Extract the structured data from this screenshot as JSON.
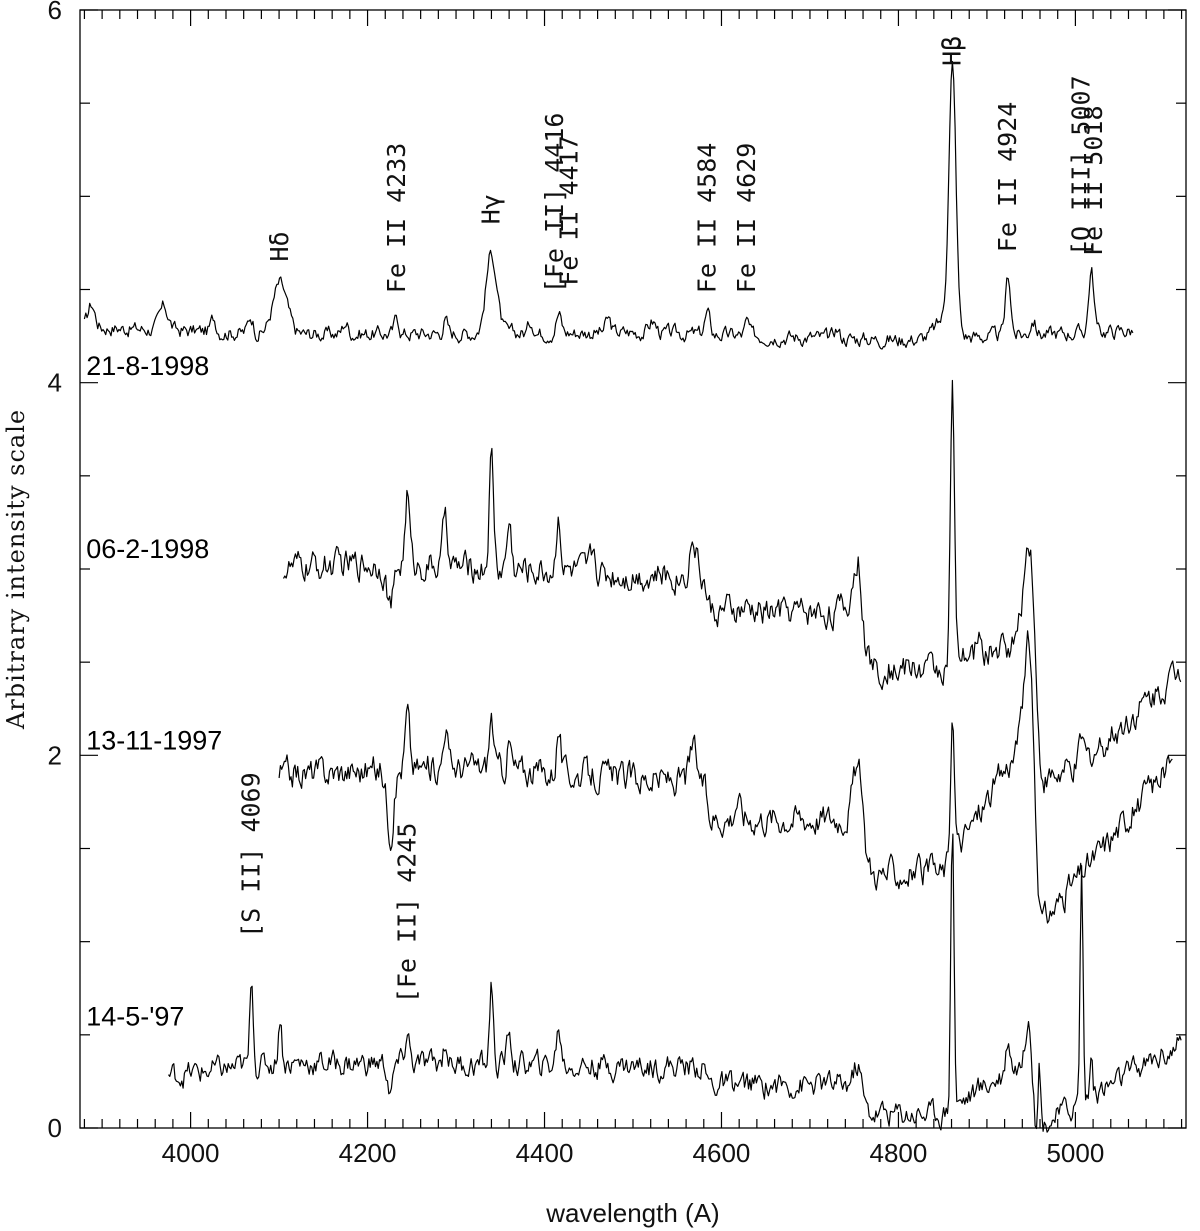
{
  "chart_data": {
    "type": "line",
    "xlabel": "wavelength (A)",
    "ylabel": "Arbitrary intensity scale",
    "xlim": [
      3875,
      5125
    ],
    "ylim": [
      0,
      6
    ],
    "x_major_ticks": [
      4000,
      4200,
      4400,
      4600,
      4800,
      5000
    ],
    "x_minor_step": 20,
    "y_major_ticks": [
      0,
      2,
      4,
      6
    ],
    "y_minor_step": 0.5,
    "grid": false,
    "series": [
      {
        "name": "21-8-1998",
        "x_range": [
          3880,
          5065
        ],
        "baseline": 4.25,
        "noise": 0.03,
        "trend": [
          [
            3880,
            4.3
          ],
          [
            4100,
            4.26
          ],
          [
            4500,
            4.27
          ],
          [
            4800,
            4.23
          ],
          [
            5065,
            4.28
          ]
        ],
        "features": [
          {
            "x": 3888,
            "h": 0.12,
            "w": 4
          },
          {
            "x": 3970,
            "h": 0.12,
            "w": 5
          },
          {
            "x": 4026,
            "h": 0.07,
            "w": 3
          },
          {
            "x": 4068,
            "h": 0.09,
            "w": 3
          },
          {
            "x": 4101,
            "h": 0.27,
            "w": 8
          },
          {
            "x": 4175,
            "h": 0.06,
            "w": 3
          },
          {
            "x": 4233,
            "h": 0.09,
            "w": 2.5
          },
          {
            "x": 4288,
            "h": 0.07,
            "w": 2.5
          },
          {
            "x": 4340,
            "h": 0.43,
            "w": 6
          },
          {
            "x": 4385,
            "h": 0.06,
            "w": 3
          },
          {
            "x": 4416,
            "h": 0.1,
            "w": 3
          },
          {
            "x": 4472,
            "h": 0.07,
            "w": 3
          },
          {
            "x": 4522,
            "h": 0.06,
            "w": 4
          },
          {
            "x": 4584,
            "h": 0.11,
            "w": 3
          },
          {
            "x": 4629,
            "h": 0.07,
            "w": 2.5
          },
          {
            "x": 4730,
            "h": 0.05,
            "w": 3
          },
          {
            "x": 4861,
            "h": 1.4,
            "w": 4
          },
          {
            "x": 4852,
            "h": 0.1,
            "w": 10
          },
          {
            "x": 4924,
            "h": 0.32,
            "w": 3
          },
          {
            "x": 4952,
            "h": 0.08,
            "w": 3
          },
          {
            "x": 5018,
            "h": 0.33,
            "w": 3
          }
        ],
        "edges": []
      },
      {
        "name": "06-2-1998",
        "x_range": [
          4105,
          5120
        ],
        "baseline": 3.05,
        "noise": 0.06,
        "trend": [
          [
            4105,
            3.0
          ],
          [
            4200,
            3.03
          ],
          [
            4600,
            2.95
          ],
          [
            4850,
            2.95
          ],
          [
            5000,
            3.2
          ],
          [
            5120,
            3.75
          ]
        ],
        "features": [
          {
            "x": 4226,
            "h": -0.22,
            "w": 4
          },
          {
            "x": 4245,
            "h": 0.38,
            "w": 2.5
          },
          {
            "x": 4288,
            "h": 0.3,
            "w": 2.5
          },
          {
            "x": 4340,
            "h": 0.6,
            "w": 2.5
          },
          {
            "x": 4360,
            "h": 0.25,
            "w": 2.5
          },
          {
            "x": 4416,
            "h": 0.32,
            "w": 2.5
          },
          {
            "x": 4455,
            "h": 0.12,
            "w": 3
          },
          {
            "x": 4568,
            "h": 0.2,
            "w": 4
          },
          {
            "x": 4755,
            "h": 0.3,
            "w": 6
          },
          {
            "x": 4861,
            "h": 1.5,
            "w": 2.2
          },
          {
            "x": 4890,
            "h": 0.1,
            "w": 2.5
          },
          {
            "x": 4948,
            "h": 0.55,
            "w": 6
          },
          {
            "x": 5007,
            "h": 0.12,
            "w": 2.5
          }
        ],
        "edges": [
          {
            "x": 4583,
            "d": -0.18,
            "w": 1.5
          },
          {
            "x": 4758,
            "d": -0.3,
            "w": 1.5
          },
          {
            "x": 4955,
            "d": -0.8,
            "w": 2
          }
        ]
      },
      {
        "name": "13-11-1997",
        "x_range": [
          4100,
          5110
        ],
        "baseline": 1.93,
        "noise": 0.06,
        "trend": [
          [
            4100,
            1.9
          ],
          [
            4300,
            1.94
          ],
          [
            4600,
            1.85
          ],
          [
            4850,
            1.85
          ],
          [
            4945,
            2.6
          ],
          [
            4960,
            1.82
          ],
          [
            5110,
            2.7
          ]
        ],
        "features": [
          {
            "x": 4226,
            "h": -0.32,
            "w": 4
          },
          {
            "x": 4245,
            "h": 0.3,
            "w": 2.5
          },
          {
            "x": 4288,
            "h": 0.24,
            "w": 2.5
          },
          {
            "x": 4340,
            "h": 0.28,
            "w": 2.5
          },
          {
            "x": 4360,
            "h": 0.15,
            "w": 2.5
          },
          {
            "x": 4416,
            "h": 0.24,
            "w": 2.5
          },
          {
            "x": 4568,
            "h": 0.18,
            "w": 4
          },
          {
            "x": 4618,
            "h": 0.1,
            "w": 3
          },
          {
            "x": 4755,
            "h": 0.3,
            "w": 6
          },
          {
            "x": 4861,
            "h": 0.7,
            "w": 2.2
          },
          {
            "x": 4948,
            "h": 0.6,
            "w": 5
          }
        ],
        "edges": [
          {
            "x": 4583,
            "d": -0.18,
            "w": 1.5
          },
          {
            "x": 4758,
            "d": -0.3,
            "w": 1.5
          },
          {
            "x": 4955,
            "d": -0.25,
            "w": 2
          }
        ]
      },
      {
        "name": "14-5-'97",
        "x_range": [
          3975,
          5120
        ],
        "baseline": 0.3,
        "noise": 0.05,
        "trend": [
          [
            3975,
            0.28
          ],
          [
            4100,
            0.35
          ],
          [
            4600,
            0.33
          ],
          [
            4850,
            0.33
          ],
          [
            4945,
            0.62
          ],
          [
            4955,
            0.25
          ],
          [
            5120,
            0.7
          ]
        ],
        "features": [
          {
            "x": 4069,
            "h": 0.5,
            "w": 1.8
          },
          {
            "x": 4101,
            "h": 0.25,
            "w": 2
          },
          {
            "x": 4226,
            "h": -0.15,
            "w": 3
          },
          {
            "x": 4245,
            "h": 0.16,
            "w": 2.5
          },
          {
            "x": 4288,
            "h": 0.12,
            "w": 2.5
          },
          {
            "x": 4340,
            "h": 0.45,
            "w": 2
          },
          {
            "x": 4360,
            "h": 0.18,
            "w": 2.5
          },
          {
            "x": 4416,
            "h": 0.2,
            "w": 2.5
          },
          {
            "x": 4755,
            "h": 0.12,
            "w": 5
          },
          {
            "x": 4861,
            "h": 1.55,
            "w": 1.8
          },
          {
            "x": 4924,
            "h": 0.18,
            "w": 2.5
          },
          {
            "x": 4948,
            "h": 0.35,
            "w": 3
          },
          {
            "x": 4959,
            "h": 0.35,
            "w": 1.5
          },
          {
            "x": 5007,
            "h": 1.28,
            "w": 1.6
          },
          {
            "x": 5018,
            "h": 0.22,
            "w": 1.6
          }
        ],
        "edges": [
          {
            "x": 4583,
            "d": -0.1,
            "w": 1.5
          },
          {
            "x": 4758,
            "d": -0.15,
            "w": 1.5
          }
        ]
      }
    ],
    "series_labels": [
      {
        "text": "21-8-1998",
        "x": 3882,
        "y": 4.04
      },
      {
        "text": "06-2-1998",
        "x": 3882,
        "y": 3.06
      },
      {
        "text": "13-11-1997",
        "x": 3882,
        "y": 2.03
      },
      {
        "text": "14-5-'97",
        "x": 3882,
        "y": 0.55
      }
    ],
    "annotations": [
      {
        "text": "Hδ",
        "x": 4101,
        "y": 4.65
      },
      {
        "text": "Fe II  4233",
        "x": 4233,
        "y": 4.48
      },
      {
        "text": "Hγ",
        "x": 4340,
        "y": 4.85
      },
      {
        "text": "[Fe II] 4416",
        "x": 4412,
        "y": 4.48
      },
      {
        "text": "Fe II  4417",
        "x": 4428,
        "y": 4.52
      },
      {
        "text": "Fe II  4584",
        "x": 4584,
        "y": 4.48
      },
      {
        "text": "Fe II  4629",
        "x": 4629,
        "y": 4.48
      },
      {
        "text": "Hβ",
        "x": 4861,
        "y": 5.7
      },
      {
        "text": "Fe II  4924",
        "x": 4924,
        "y": 4.7
      },
      {
        "text": "[O III] 5007",
        "x": 5007,
        "y": 4.68
      },
      {
        "text": "Fe II  5018",
        "x": 5021,
        "y": 4.68
      },
      {
        "text": "[S II]  4069",
        "x": 4069,
        "y": 1.02
      },
      {
        "text": "[Fe II]  4245",
        "x": 4245,
        "y": 0.67
      }
    ]
  }
}
